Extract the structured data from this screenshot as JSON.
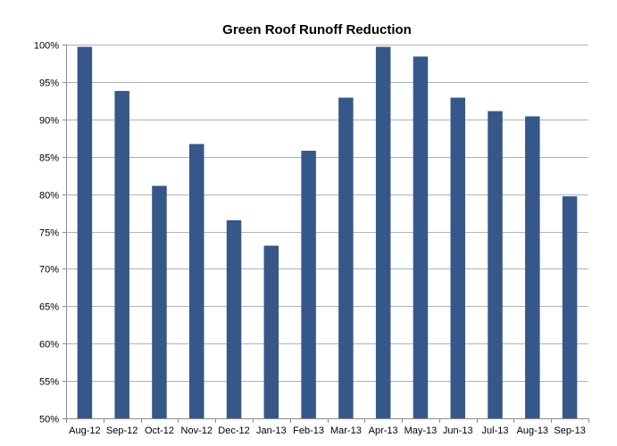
{
  "chart_data": {
    "type": "bar",
    "title": "Green Roof Runoff Reduction",
    "xlabel": "",
    "ylabel": "",
    "categories": [
      "Aug-12",
      "Sep-12",
      "Oct-12",
      "Nov-12",
      "Dec-12",
      "Jan-13",
      "Feb-13",
      "Mar-13",
      "Apr-13",
      "May-13",
      "Jun-13",
      "Jul-13",
      "Aug-13",
      "Sep-13"
    ],
    "values": [
      0.997,
      0.938,
      0.811,
      0.867,
      0.765,
      0.731,
      0.858,
      0.929,
      0.997,
      0.984,
      0.929,
      0.911,
      0.904,
      0.797
    ],
    "ylim": [
      0.5,
      1.0
    ],
    "yticks": [
      0.5,
      0.55,
      0.6,
      0.65,
      0.7,
      0.75,
      0.8,
      0.85,
      0.9,
      0.95,
      1.0
    ],
    "ytick_labels": [
      "50%",
      "55%",
      "60%",
      "65%",
      "70%",
      "75%",
      "80%",
      "85%",
      "90%",
      "95%",
      "100%"
    ],
    "grid": true,
    "legend": false,
    "bar_color": "#35578a",
    "grid_color": "#b3b3b3",
    "axis_color": "#8c8c8c"
  }
}
